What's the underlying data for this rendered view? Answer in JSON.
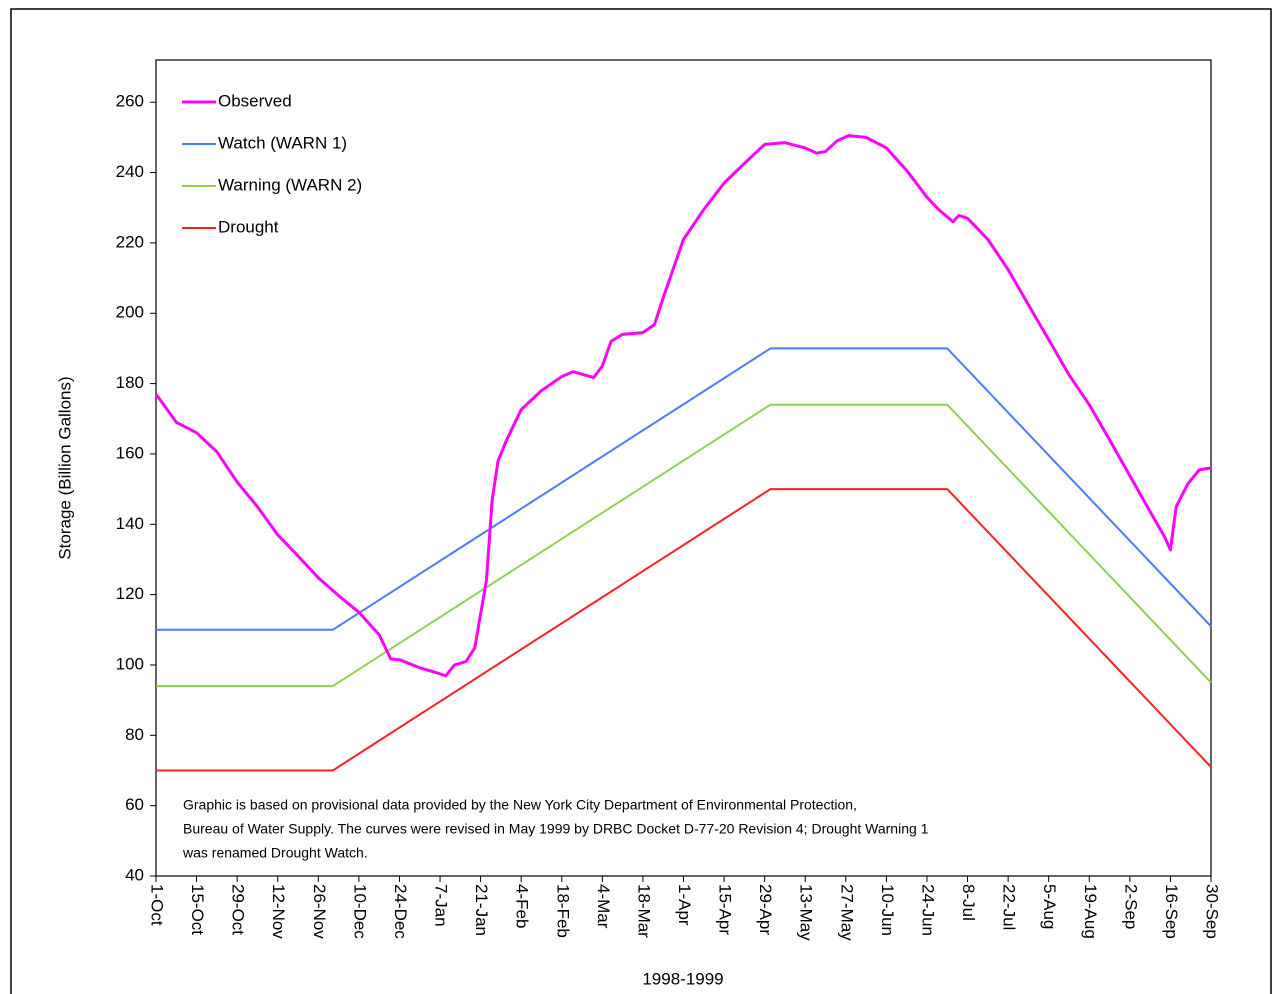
{
  "chart_data": {
    "type": "line",
    "xlabel": "1998-1999",
    "ylabel": "Storage (Billion Gallons)",
    "xlim": [
      "1-Oct",
      "30-Sep"
    ],
    "xticks": [
      "1-Oct",
      "15-Oct",
      "29-Oct",
      "12-Nov",
      "26-Nov",
      "10-Dec",
      "24-Dec",
      "7-Jan",
      "21-Jan",
      "4-Feb",
      "18-Feb",
      "4-Mar",
      "18-Mar",
      "1-Apr",
      "15-Apr",
      "29-Apr",
      "13-May",
      "27-May",
      "10-Jun",
      "24-Jun",
      "8-Jul",
      "22-Jul",
      "5-Aug",
      "19-Aug",
      "2-Sep",
      "16-Sep",
      "30-Sep"
    ],
    "ylim": [
      40,
      272
    ],
    "yticks": [
      40,
      60,
      80,
      100,
      120,
      140,
      160,
      180,
      200,
      220,
      240,
      260
    ],
    "grid": false,
    "legend": "top-left",
    "annotation": [
      "Graphic is based on provisional data provided by the New York City Department of Environmental Protection,",
      "Bureau of Water Supply. The curves were revised in May 1999 by DRBC Docket D-77-20 Revision 4; Drought Warning 1",
      "was renamed Drought Watch."
    ],
    "series": [
      {
        "name": "Observed",
        "color": "#ff00ff",
        "x": [
          "1-Oct",
          "8-Oct",
          "15-Oct",
          "22-Oct",
          "29-Oct",
          "5-Nov",
          "12-Nov",
          "19-Nov",
          "26-Nov",
          "3-Dec",
          "10-Dec",
          "17-Dec",
          "21-Dec",
          "24-Dec",
          "31-Dec",
          "5-Jan",
          "9-Jan",
          "12-Jan",
          "16-Jan",
          "19-Jan",
          "21-Jan",
          "23-Jan",
          "25-Jan",
          "27-Jan",
          "30-Jan",
          "4-Feb",
          "11-Feb",
          "18-Feb",
          "22-Feb",
          "1-Mar",
          "4-Mar",
          "7-Mar",
          "11-Mar",
          "18-Mar",
          "22-Mar",
          "25-Mar",
          "1-Apr",
          "8-Apr",
          "15-Apr",
          "22-Apr",
          "29-Apr",
          "6-May",
          "13-May",
          "17-May",
          "20-May",
          "24-May",
          "28-May",
          "3-Jun",
          "10-Jun",
          "17-Jun",
          "24-Jun",
          "28-Jun",
          "3-Jul",
          "5-Jul",
          "8-Jul",
          "15-Jul",
          "22-Jul",
          "29-Jul",
          "5-Aug",
          "12-Aug",
          "19-Aug",
          "26-Aug",
          "2-Sep",
          "9-Sep",
          "14-Sep",
          "16-Sep",
          "18-Sep",
          "22-Sep",
          "26-Sep",
          "30-Sep"
        ],
        "values": [
          177,
          169,
          166,
          160.6,
          152,
          145,
          137,
          131,
          124.8,
          119.7,
          115,
          108.6,
          101.7,
          101.5,
          99.2,
          98,
          96.9,
          100,
          101,
          104.9,
          114.5,
          124,
          147,
          158,
          164,
          172.6,
          178,
          182,
          183.4,
          181.7,
          185,
          192,
          194,
          194.5,
          196.8,
          204.4,
          221,
          229.5,
          237,
          242.6,
          248,
          248.5,
          247,
          245.5,
          246,
          249,
          250.5,
          250,
          247,
          240.6,
          233,
          229.5,
          226,
          227.8,
          227,
          221,
          212.4,
          202.4,
          192.5,
          182.5,
          174,
          164,
          153.8,
          143.6,
          136.4,
          132.7,
          145,
          151.5,
          155.5,
          156
        ]
      },
      {
        "name": "Watch (WARN 1)",
        "color": "#4a7bff",
        "x": [
          "1-Oct",
          "1-Dec",
          "1-May",
          "1-Jul",
          "30-Sep"
        ],
        "values": [
          110,
          110,
          190,
          190,
          111
        ]
      },
      {
        "name": "Warning  (WARN 2)",
        "color": "#8fd14f",
        "x": [
          "1-Oct",
          "1-Dec",
          "1-May",
          "1-Jul",
          "30-Sep"
        ],
        "values": [
          94,
          94,
          174,
          174,
          95
        ]
      },
      {
        "name": "Drought",
        "color": "#ff2020",
        "x": [
          "1-Oct",
          "1-Dec",
          "1-May",
          "1-Jul",
          "30-Sep"
        ],
        "values": [
          70,
          70,
          150,
          150,
          71
        ]
      }
    ]
  }
}
